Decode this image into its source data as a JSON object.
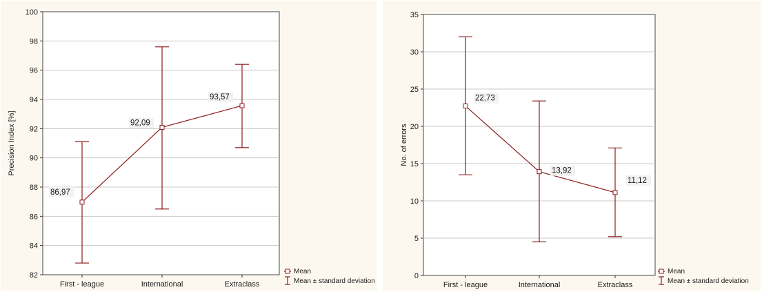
{
  "chart_data": [
    {
      "type": "line",
      "categories": [
        "First - league",
        "International",
        "Extraclass"
      ],
      "series": [
        {
          "name": "Mean",
          "values": [
            86.97,
            92.09,
            93.57
          ]
        }
      ],
      "error_bars": {
        "name": "Mean ± standard deviation",
        "lower": [
          82.8,
          86.5,
          90.7
        ],
        "upper": [
          91.1,
          97.6,
          96.4
        ]
      },
      "data_labels": [
        "86,97",
        "92,09",
        "93,57"
      ],
      "ylabel": "Precision Index [%]",
      "ylim": [
        82,
        100
      ],
      "yticks": [
        82,
        84,
        86,
        88,
        90,
        92,
        94,
        96,
        98,
        100
      ],
      "grid": true,
      "legend": {
        "position": "bottom-right",
        "entries": [
          "Mean",
          "Mean ± standard deviation"
        ]
      },
      "colors": {
        "series": "#8b1a1a",
        "grid": "#c8c8c8"
      }
    },
    {
      "type": "line",
      "categories": [
        "First - league",
        "International",
        "Extraclass"
      ],
      "series": [
        {
          "name": "Mean",
          "values": [
            22.73,
            13.92,
            11.12
          ]
        }
      ],
      "error_bars": {
        "name": "Mean ± standard deviation",
        "lower": [
          13.5,
          4.5,
          5.2
        ],
        "upper": [
          32.0,
          23.4,
          17.1
        ]
      },
      "data_labels": [
        "22,73",
        "13,92",
        "11,12"
      ],
      "ylabel": "No. of errors",
      "ylim": [
        0,
        35
      ],
      "yticks": [
        0,
        5,
        10,
        15,
        20,
        25,
        30,
        35
      ],
      "grid": true,
      "legend": {
        "position": "bottom-right",
        "entries": [
          "Mean",
          "Mean ± standard deviation"
        ]
      },
      "colors": {
        "series": "#8b1a1a",
        "grid": "#c8c8c8"
      }
    }
  ]
}
